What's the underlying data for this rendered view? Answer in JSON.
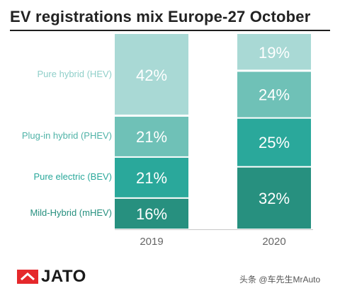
{
  "chart_data": {
    "type": "bar",
    "stacked": true,
    "title": "EV registrations mix Europe-27 October",
    "categories": [
      "2019",
      "2020"
    ],
    "series": [
      {
        "name": "Mild-Hybrid (mHEV)",
        "values": [
          16,
          32
        ],
        "color": "#27907f",
        "label_color": "#27907f"
      },
      {
        "name": "Pure electric (BEV)",
        "values": [
          21,
          25
        ],
        "color": "#2aa89b",
        "label_color": "#2aa89b"
      },
      {
        "name": "Plug-in hybrid (PHEV)",
        "values": [
          21,
          24
        ],
        "color": "#6fc1b7",
        "label_color": "#4fb3a7"
      },
      {
        "name": "Pure hybrid (HEV)",
        "values": [
          42,
          19
        ],
        "color": "#a9d9d5",
        "label_color": "#8fcfc9"
      }
    ],
    "value_suffix": "%",
    "ylim": [
      0,
      100
    ]
  },
  "logo": {
    "text": "JATO"
  },
  "watermark": {
    "text": "头条 @车先生MrAuto"
  }
}
